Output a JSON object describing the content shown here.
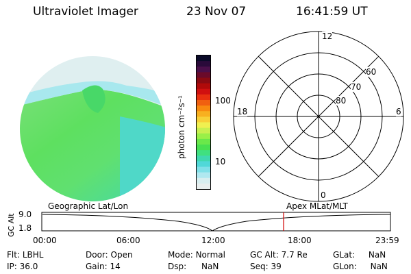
{
  "header": {
    "instrument": "Ultraviolet Imager",
    "date": "23 Nov 07",
    "time": "16:41:59 UT"
  },
  "colorbar": {
    "label": "photon cm⁻²s⁻¹",
    "ticks": [
      "100",
      "10"
    ],
    "colors": [
      "#0a0a28",
      "#2a0a3a",
      "#4a0f4a",
      "#6a0a2a",
      "#8a0a12",
      "#b00a0a",
      "#d01010",
      "#e83010",
      "#f06010",
      "#f88a10",
      "#f8b020",
      "#f8d038",
      "#f0f050",
      "#c8f050",
      "#9af048",
      "#6ae84a",
      "#48e050",
      "#40e080",
      "#40d8b0",
      "#50d8d8",
      "#80e0e8",
      "#b0e8f0",
      "#d8eef0",
      "#e8eeee"
    ]
  },
  "polar": {
    "mlt_labels": [
      "12",
      "18",
      "6",
      "0"
    ],
    "lat_labels": [
      "60",
      "70",
      "80"
    ]
  },
  "timeline": {
    "left_label": "Geographic Lat/Lon",
    "right_label": "Apex MLat/MLT",
    "axis_title": "GC Alt",
    "y_ticks": [
      "9.0",
      "1.8"
    ],
    "x_ticks": [
      "00:00",
      "06:00",
      "12:00",
      "18:00",
      "23:59"
    ],
    "marker_color": "#d00000"
  },
  "status": {
    "filter": {
      "label": "Flt:",
      "value": "LBHL"
    },
    "ip": {
      "label": "IP:",
      "value": "36.0"
    },
    "door": {
      "label": "Door:",
      "value": "Open"
    },
    "gain": {
      "label": "Gain:",
      "value": "14"
    },
    "mode": {
      "label": "Mode:",
      "value": "Normal"
    },
    "dsp": {
      "label": "Dsp:",
      "value": "NaN"
    },
    "gc_alt": {
      "label": "GC Alt:",
      "value": "7.7 Re"
    },
    "seq": {
      "label": "Seq:",
      "value": "39"
    },
    "glat": {
      "label": "GLat:",
      "value": "NaN"
    },
    "glon": {
      "label": "GLon:",
      "value": "NaN"
    }
  }
}
